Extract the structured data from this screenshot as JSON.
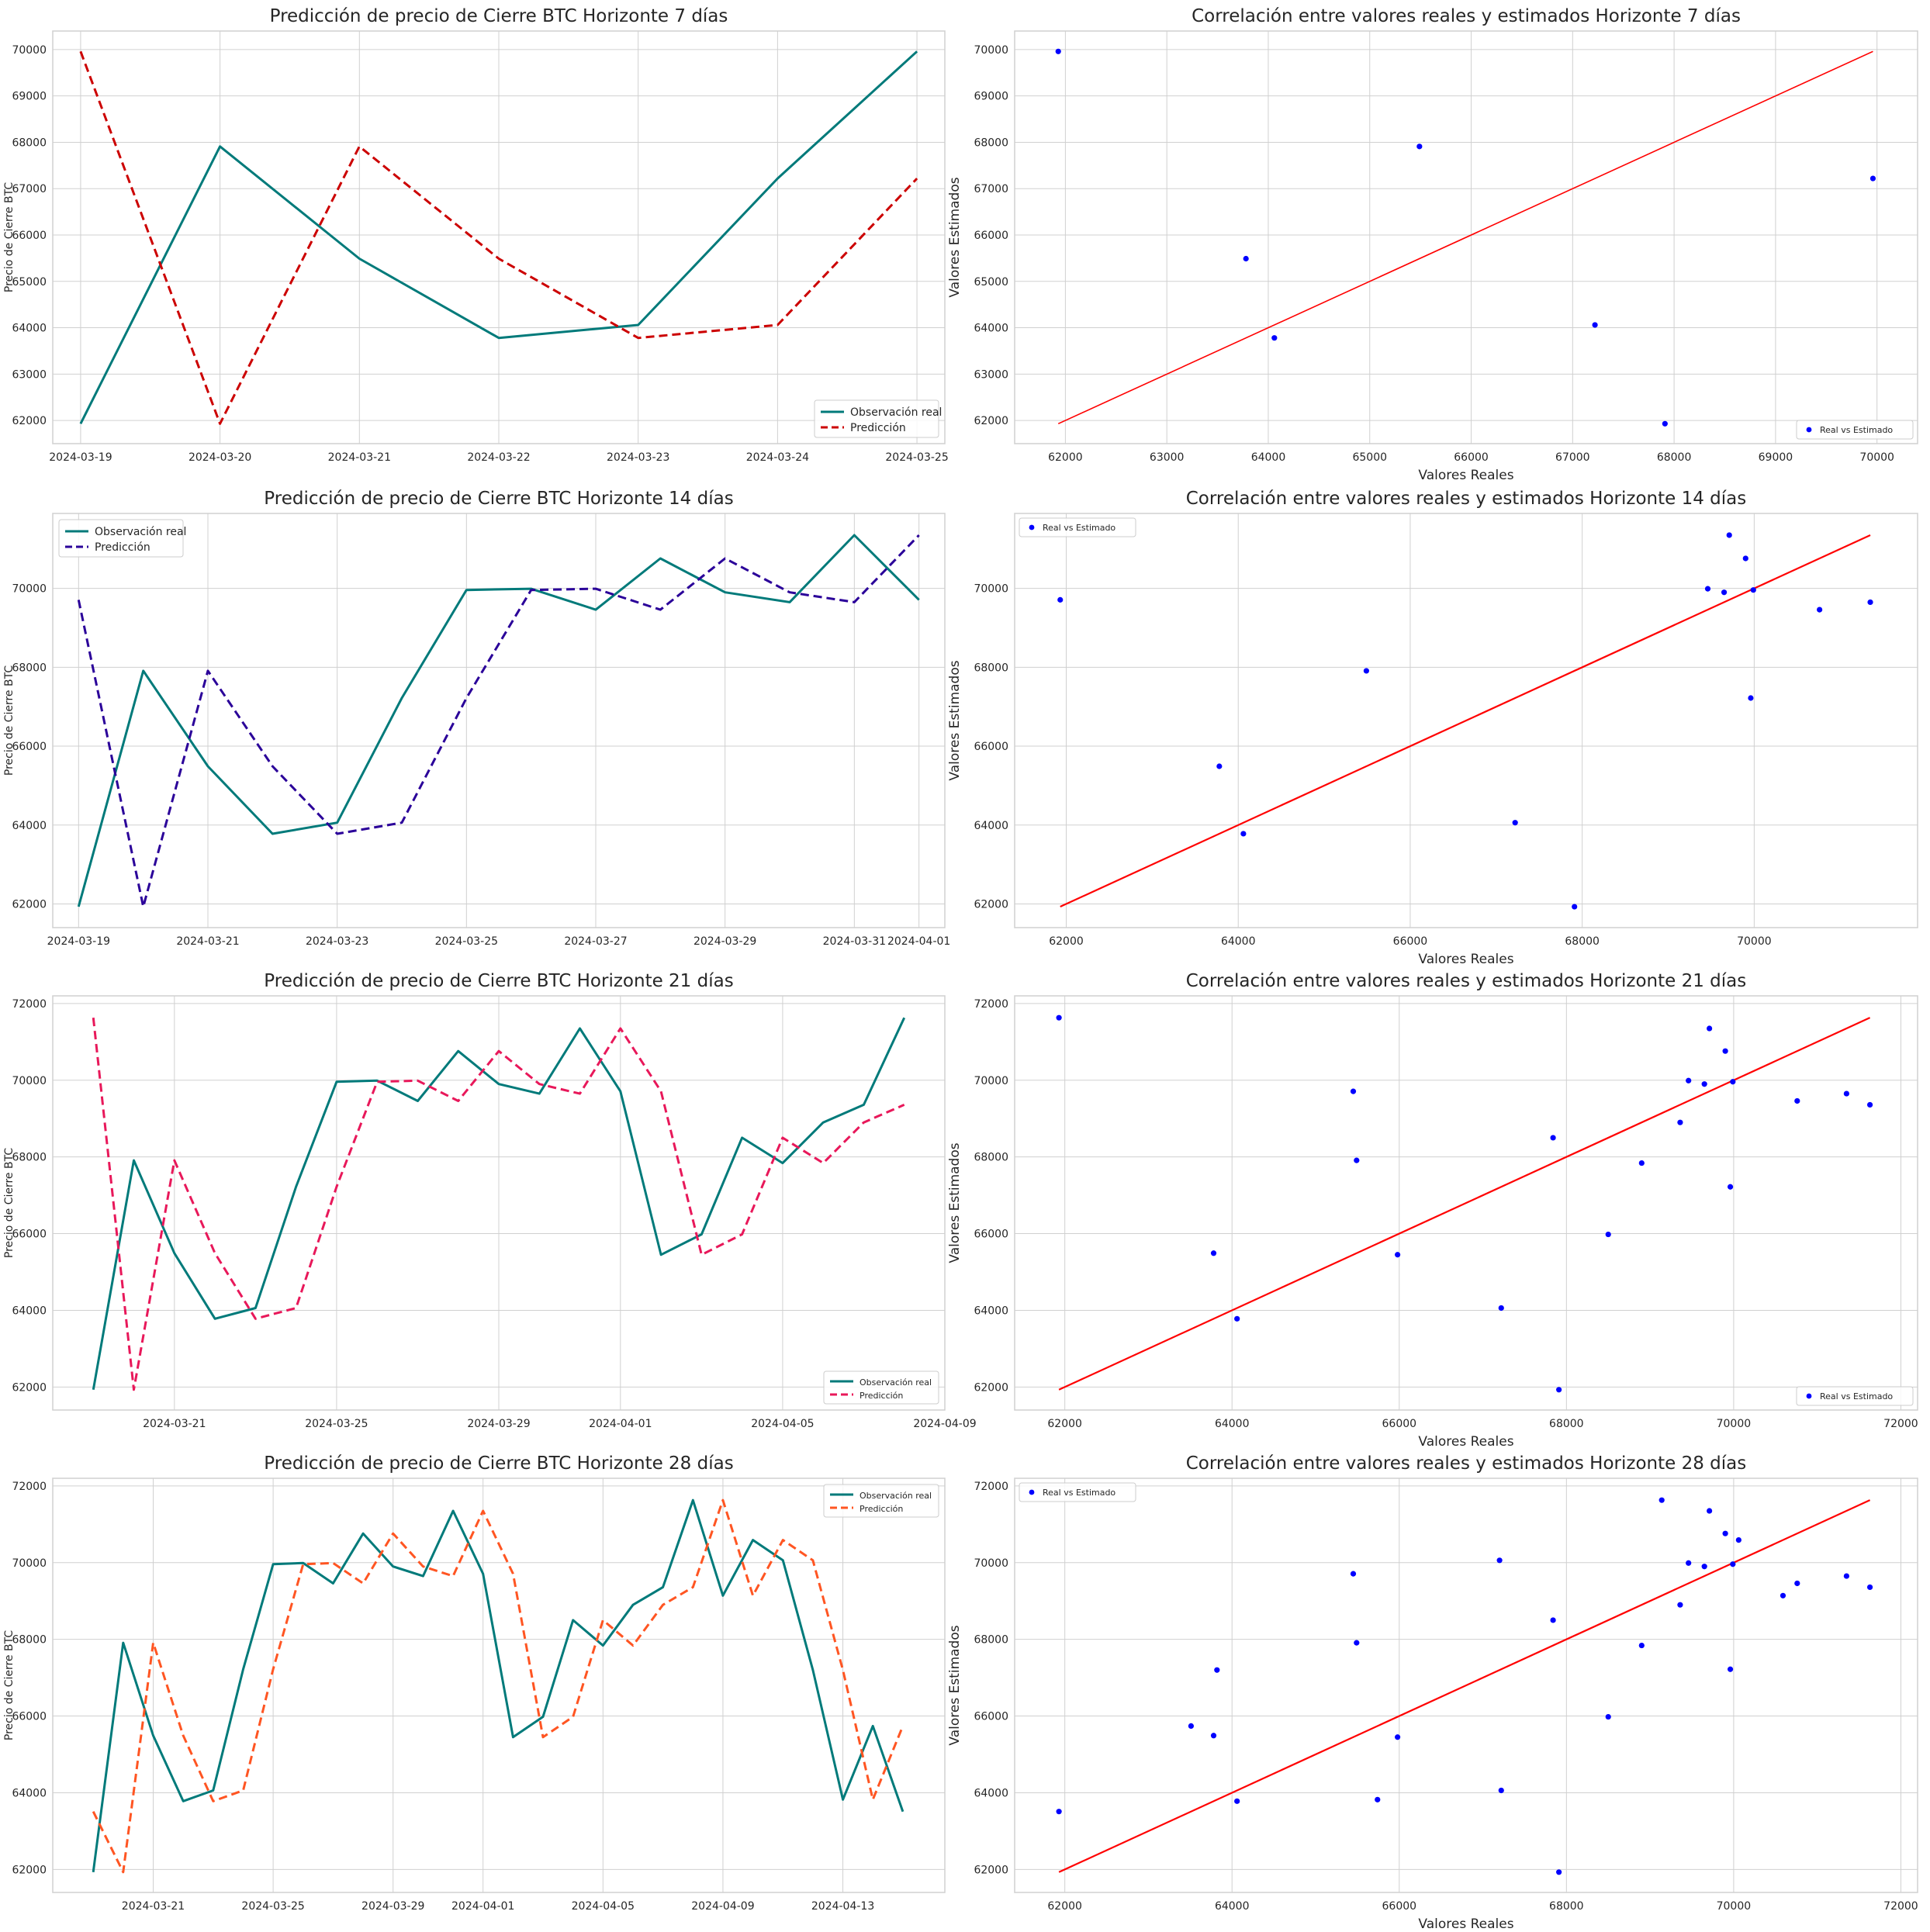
{
  "colors": {
    "real": "#007a7a",
    "grid": "#d0d0d0",
    "frame": "#d0d0d0",
    "scatter": "#0000ff",
    "identity": "#ff0000"
  },
  "chart_data": [
    {
      "type": "line",
      "title": "Predicción de precio de Cierre BTC Horizonte 7 días",
      "ylabel": "Precio de Cierre BTC",
      "xlabel": "",
      "x": [
        "2024-03-19",
        "2024-03-20",
        "2024-03-21",
        "2024-03-22",
        "2024-03-23",
        "2024-03-24",
        "2024-03-25"
      ],
      "xticks": [
        "2024-03-19",
        "2024-03-20",
        "2024-03-21",
        "2024-03-22",
        "2024-03-23",
        "2024-03-24",
        "2024-03-25"
      ],
      "xlim": [
        "2024-03-18T19:12",
        "2024-03-25T04:48"
      ],
      "yticks": [
        62000,
        63000,
        64000,
        65000,
        66000,
        67000,
        68000,
        69000,
        70000
      ],
      "ylim": [
        61500,
        70400
      ],
      "legend_placement": "lower-right",
      "series": [
        {
          "name": "Observación real",
          "style": "solid",
          "color": "#007a7a",
          "values": [
            61930,
            67910,
            65490,
            63780,
            64060,
            67220,
            69960
          ]
        },
        {
          "name": "Predicción",
          "style": "dashed",
          "color": "#cc0000",
          "values": [
            69960,
            61930,
            67910,
            65490,
            63780,
            64060,
            67220
          ]
        }
      ]
    },
    {
      "type": "scatter",
      "title": "Correlación entre valores reales y estimados Horizonte 7 días",
      "xlabel": "Valores Reales",
      "ylabel": "Valores Estimados",
      "xticks": [
        62000,
        63000,
        64000,
        65000,
        66000,
        67000,
        68000,
        69000,
        70000
      ],
      "yticks": [
        62000,
        63000,
        64000,
        65000,
        66000,
        67000,
        68000,
        69000,
        70000
      ],
      "xlim": [
        61500,
        70400
      ],
      "ylim": [
        61500,
        70400
      ],
      "legend": "Real vs Estimado",
      "legend_placement": "lower-right",
      "points": [
        [
          61930,
          69960
        ],
        [
          63780,
          65490
        ],
        [
          64060,
          63780
        ],
        [
          65490,
          67910
        ],
        [
          67220,
          64060
        ],
        [
          67910,
          61930
        ],
        [
          69960,
          67220
        ]
      ],
      "identity": [
        61930,
        69960
      ]
    },
    {
      "type": "line",
      "title": "Predicción de precio de Cierre BTC Horizonte 14 días",
      "ylabel": "Precio de Cierre BTC",
      "xlabel": "",
      "x": [
        "2024-03-19",
        "2024-03-20",
        "2024-03-21",
        "2024-03-22",
        "2024-03-23",
        "2024-03-24",
        "2024-03-25",
        "2024-03-26",
        "2024-03-27",
        "2024-03-28",
        "2024-03-29",
        "2024-03-30",
        "2024-03-31",
        "2024-04-01"
      ],
      "xticks": [
        "2024-03-19",
        "2024-03-21",
        "2024-03-23",
        "2024-03-25",
        "2024-03-27",
        "2024-03-29",
        "2024-03-31",
        "2024-04-01"
      ],
      "xlim": [
        "2024-03-18T14:24",
        "2024-04-01T09:36"
      ],
      "yticks": [
        62000,
        64000,
        66000,
        68000,
        70000
      ],
      "ylim": [
        61400,
        71900
      ],
      "legend_placement": "upper-left",
      "series": [
        {
          "name": "Observación real",
          "style": "solid",
          "color": "#007a7a",
          "values": [
            61930,
            67910,
            65490,
            63780,
            64060,
            67220,
            69960,
            69990,
            69460,
            70760,
            69900,
            69650,
            71350,
            69710
          ]
        },
        {
          "name": "Predicción",
          "style": "dashed",
          "color": "#2a0099",
          "values": [
            69710,
            61930,
            67910,
            65490,
            63780,
            64060,
            67220,
            69960,
            69990,
            69460,
            70760,
            69900,
            69650,
            71350
          ]
        }
      ]
    },
    {
      "type": "scatter",
      "title": "Correlación entre valores reales y estimados Horizonte 14 días",
      "xlabel": "Valores Reales",
      "ylabel": "Valores Estimados",
      "xticks": [
        62000,
        64000,
        66000,
        68000,
        70000
      ],
      "yticks": [
        62000,
        64000,
        66000,
        68000,
        70000
      ],
      "xlim": [
        61400,
        71900
      ],
      "ylim": [
        61400,
        71900
      ],
      "legend": "Real vs Estimado",
      "legend_placement": "upper-left",
      "points": [
        [
          61930,
          69710
        ],
        [
          63780,
          65490
        ],
        [
          64060,
          63780
        ],
        [
          65490,
          67910
        ],
        [
          67220,
          64060
        ],
        [
          67910,
          61930
        ],
        [
          69460,
          69990
        ],
        [
          69650,
          69900
        ],
        [
          69710,
          71350
        ],
        [
          69900,
          70760
        ],
        [
          69960,
          67220
        ],
        [
          69990,
          69960
        ],
        [
          70760,
          69460
        ],
        [
          71350,
          69650
        ]
      ],
      "identity": [
        61930,
        71350
      ]
    },
    {
      "type": "line",
      "title": "Predicción de precio de Cierre BTC Horizonte 21 días",
      "ylabel": "Precio de Cierre BTC",
      "xlabel": "",
      "x": [
        "2024-03-19",
        "2024-03-20",
        "2024-03-21",
        "2024-03-22",
        "2024-03-23",
        "2024-03-24",
        "2024-03-25",
        "2024-03-26",
        "2024-03-27",
        "2024-03-28",
        "2024-03-29",
        "2024-03-30",
        "2024-03-31",
        "2024-04-01",
        "2024-04-02",
        "2024-04-03",
        "2024-04-04",
        "2024-04-05",
        "2024-04-06",
        "2024-04-07",
        "2024-04-08"
      ],
      "xticks": [
        "2024-03-21",
        "2024-03-25",
        "2024-03-29",
        "2024-04-01",
        "2024-04-05",
        "2024-04-09"
      ],
      "xlim": [
        "2024-03-18T00:00",
        "2024-04-09T00:00"
      ],
      "yticks": [
        62000,
        64000,
        66000,
        68000,
        70000,
        72000
      ],
      "ylim": [
        61400,
        72200
      ],
      "legend_placement": "lower-right",
      "series": [
        {
          "name": "Observación real",
          "style": "solid",
          "color": "#007a7a",
          "values": [
            61930,
            67910,
            65490,
            63780,
            64060,
            67220,
            69960,
            69990,
            69460,
            70760,
            69900,
            69650,
            71350,
            69710,
            65450,
            65980,
            68500,
            67840,
            68900,
            69360,
            71630
          ]
        },
        {
          "name": "Predicción",
          "style": "dashed",
          "color": "#e8185a",
          "values": [
            71630,
            61930,
            67910,
            65490,
            63780,
            64060,
            67220,
            69960,
            69990,
            69460,
            70760,
            69900,
            69650,
            71350,
            69710,
            65450,
            65980,
            68500,
            67840,
            68900,
            69360
          ]
        }
      ]
    },
    {
      "type": "scatter",
      "title": "Correlación entre valores reales y estimados Horizonte 21 días",
      "xlabel": "Valores Reales",
      "ylabel": "Valores Estimados",
      "xticks": [
        62000,
        64000,
        66000,
        68000,
        70000,
        72000
      ],
      "yticks": [
        62000,
        64000,
        66000,
        68000,
        70000,
        72000
      ],
      "xlim": [
        61400,
        72200
      ],
      "ylim": [
        61400,
        72200
      ],
      "legend": "Real vs Estimado",
      "legend_placement": "lower-right",
      "points": [
        [
          61930,
          71630
        ],
        [
          63780,
          65490
        ],
        [
          64060,
          63780
        ],
        [
          65450,
          69710
        ],
        [
          65490,
          67910
        ],
        [
          65980,
          65450
        ],
        [
          67220,
          64060
        ],
        [
          67840,
          68500
        ],
        [
          67910,
          61930
        ],
        [
          68500,
          65980
        ],
        [
          68900,
          67840
        ],
        [
          69360,
          68900
        ],
        [
          69460,
          69990
        ],
        [
          69650,
          69900
        ],
        [
          69710,
          71350
        ],
        [
          69900,
          70760
        ],
        [
          69960,
          67220
        ],
        [
          69990,
          69960
        ],
        [
          70760,
          69460
        ],
        [
          71350,
          69650
        ],
        [
          71630,
          69360
        ]
      ],
      "identity": [
        61930,
        71630
      ]
    },
    {
      "type": "line",
      "title": "Predicción de precio de Cierre BTC Horizonte 28 días",
      "ylabel": "Precio de Cierre BTC",
      "xlabel": "",
      "x": [
        "2024-03-19",
        "2024-03-20",
        "2024-03-21",
        "2024-03-22",
        "2024-03-23",
        "2024-03-24",
        "2024-03-25",
        "2024-03-26",
        "2024-03-27",
        "2024-03-28",
        "2024-03-29",
        "2024-03-30",
        "2024-03-31",
        "2024-04-01",
        "2024-04-02",
        "2024-04-03",
        "2024-04-04",
        "2024-04-05",
        "2024-04-06",
        "2024-04-07",
        "2024-04-08",
        "2024-04-09",
        "2024-04-10",
        "2024-04-11",
        "2024-04-12",
        "2024-04-13",
        "2024-04-14",
        "2024-04-15"
      ],
      "xticks": [
        "2024-03-21",
        "2024-03-25",
        "2024-03-29",
        "2024-04-01",
        "2024-04-05",
        "2024-04-09",
        "2024-04-13"
      ],
      "xlim": [
        "2024-03-17T15:36",
        "2024-04-16T09:36"
      ],
      "yticks": [
        62000,
        64000,
        66000,
        68000,
        70000,
        72000
      ],
      "ylim": [
        61400,
        72200
      ],
      "legend_placement": "upper-right",
      "series": [
        {
          "name": "Observación real",
          "style": "solid",
          "color": "#007a7a",
          "values": [
            61930,
            67910,
            65490,
            63780,
            64060,
            67220,
            69960,
            69990,
            69460,
            70760,
            69900,
            69650,
            71350,
            69710,
            65450,
            65980,
            68500,
            67840,
            68900,
            69360,
            71630,
            69140,
            70590,
            70060,
            67200,
            63820,
            65740,
            63510
          ]
        },
        {
          "name": "Predicción",
          "style": "dashed",
          "color": "#ff5522",
          "values": [
            63510,
            61930,
            67910,
            65490,
            63780,
            64060,
            67220,
            69960,
            69990,
            69460,
            70760,
            69900,
            69650,
            71350,
            69710,
            65450,
            65980,
            68500,
            67840,
            68900,
            69360,
            71630,
            69140,
            70590,
            70060,
            67200,
            63820,
            65740
          ]
        }
      ]
    },
    {
      "type": "scatter",
      "title": "Correlación entre valores reales y estimados Horizonte 28 días",
      "xlabel": "Valores Reales",
      "ylabel": "Valores Estimados",
      "xticks": [
        62000,
        64000,
        66000,
        68000,
        70000,
        72000
      ],
      "yticks": [
        62000,
        64000,
        66000,
        68000,
        70000,
        72000
      ],
      "xlim": [
        61400,
        72200
      ],
      "ylim": [
        61400,
        72200
      ],
      "legend": "Real vs Estimado",
      "legend_placement": "upper-left",
      "points": [
        [
          61930,
          63510
        ],
        [
          63510,
          65740
        ],
        [
          63780,
          65490
        ],
        [
          63820,
          67200
        ],
        [
          64060,
          63780
        ],
        [
          65450,
          69710
        ],
        [
          65490,
          67910
        ],
        [
          65740,
          63820
        ],
        [
          65980,
          65450
        ],
        [
          67200,
          70060
        ],
        [
          67220,
          64060
        ],
        [
          67840,
          68500
        ],
        [
          67910,
          61930
        ],
        [
          68500,
          65980
        ],
        [
          68900,
          67840
        ],
        [
          69140,
          71630
        ],
        [
          69360,
          68900
        ],
        [
          69460,
          69990
        ],
        [
          69650,
          69900
        ],
        [
          69710,
          71350
        ],
        [
          69900,
          70760
        ],
        [
          69960,
          67220
        ],
        [
          69990,
          69960
        ],
        [
          70060,
          70590
        ],
        [
          70590,
          69140
        ],
        [
          70760,
          69460
        ],
        [
          71350,
          69650
        ],
        [
          71630,
          69360
        ]
      ],
      "identity": [
        61930,
        71630
      ]
    }
  ]
}
